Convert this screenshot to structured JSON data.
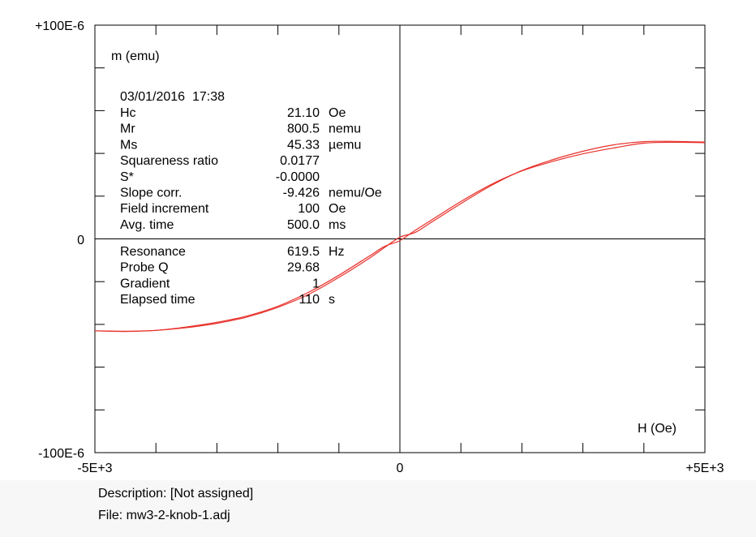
{
  "chart_data": {
    "type": "line",
    "xlabel": "H (Oe)",
    "ylabel": "m (emu)",
    "x_tick_labels": [
      "-5E+3",
      "0",
      "+5E+3"
    ],
    "y_tick_labels": [
      "+100E-6",
      "0",
      "-100E-6"
    ],
    "xlim": [
      -5000,
      5000
    ],
    "ylim": [
      -0.0001,
      0.0001
    ],
    "series_color": "#e8302a",
    "series": [
      {
        "branch": "descending",
        "x": [
          5000,
          4500,
          4000,
          3500,
          3000,
          2500,
          2000,
          1500,
          1000,
          500,
          250,
          0,
          -250,
          -500,
          -1000,
          -1500,
          -2000,
          -2500,
          -3000,
          -3500,
          -4000,
          -4500,
          -5000
        ],
        "y": [
          4.53e-05,
          4.56e-05,
          4.55e-05,
          4.4e-05,
          4.1e-05,
          3.7e-05,
          3.2e-05,
          2.5e-05,
          1.65e-05,
          7.5e-06,
          3e-06,
          8e-07,
          -4e-06,
          -9e-06,
          -1.8e-05,
          -2.6e-05,
          -3.2e-05,
          -3.65e-05,
          -3.95e-05,
          -4.15e-05,
          -4.28e-05,
          -4.32e-05,
          -4.3e-05
        ]
      },
      {
        "branch": "ascending",
        "x": [
          -5000,
          -4500,
          -4000,
          -3500,
          -3000,
          -2500,
          -2000,
          -1500,
          -1000,
          -500,
          -250,
          0,
          250,
          500,
          1000,
          1500,
          2000,
          2500,
          3000,
          3500,
          4000,
          4500,
          5000
        ],
        "y": [
          -4.3e-05,
          -4.33e-05,
          -4.28e-05,
          -4.12e-05,
          -3.9e-05,
          -3.6e-05,
          -3.15e-05,
          -2.5e-05,
          -1.7e-05,
          -8e-06,
          -3.5e-06,
          -8e-07,
          4e-06,
          8.5e-06,
          1.75e-05,
          2.55e-05,
          3.18e-05,
          3.62e-05,
          3.98e-05,
          4.25e-05,
          4.48e-05,
          4.52e-05,
          4.5e-05
        ]
      }
    ]
  },
  "info": {
    "datetime": "03/01/2016  17:38",
    "rows": [
      {
        "label": "Hc",
        "value": "21.10",
        "unit": "Oe"
      },
      {
        "label": "Mr",
        "value": "800.5",
        "unit": "nemu"
      },
      {
        "label": "Ms",
        "value": "45.33",
        "unit": "µemu"
      },
      {
        "label": "Squareness ratio",
        "value": "0.0177",
        "unit": ""
      },
      {
        "label": "S*",
        "value": "-0.0000",
        "unit": ""
      },
      {
        "label": "Slope corr.",
        "value": "-9.426",
        "unit": "nemu/Oe"
      },
      {
        "label": "Field increment",
        "value": "100",
        "unit": "Oe"
      },
      {
        "label": "Avg. time",
        "value": "500.0",
        "unit": "ms"
      }
    ],
    "rows2": [
      {
        "label": "Resonance",
        "value": "619.5",
        "unit": "Hz"
      },
      {
        "label": "Probe Q",
        "value": "29.68",
        "unit": ""
      },
      {
        "label": "Gradient",
        "value": "1",
        "unit": ""
      },
      {
        "label": "Elapsed time",
        "value": "110",
        "unit": "s"
      }
    ]
  },
  "footer": {
    "description": "Description:  [Not assigned]",
    "file": "File:  mw3-2-knob-1.adj"
  }
}
